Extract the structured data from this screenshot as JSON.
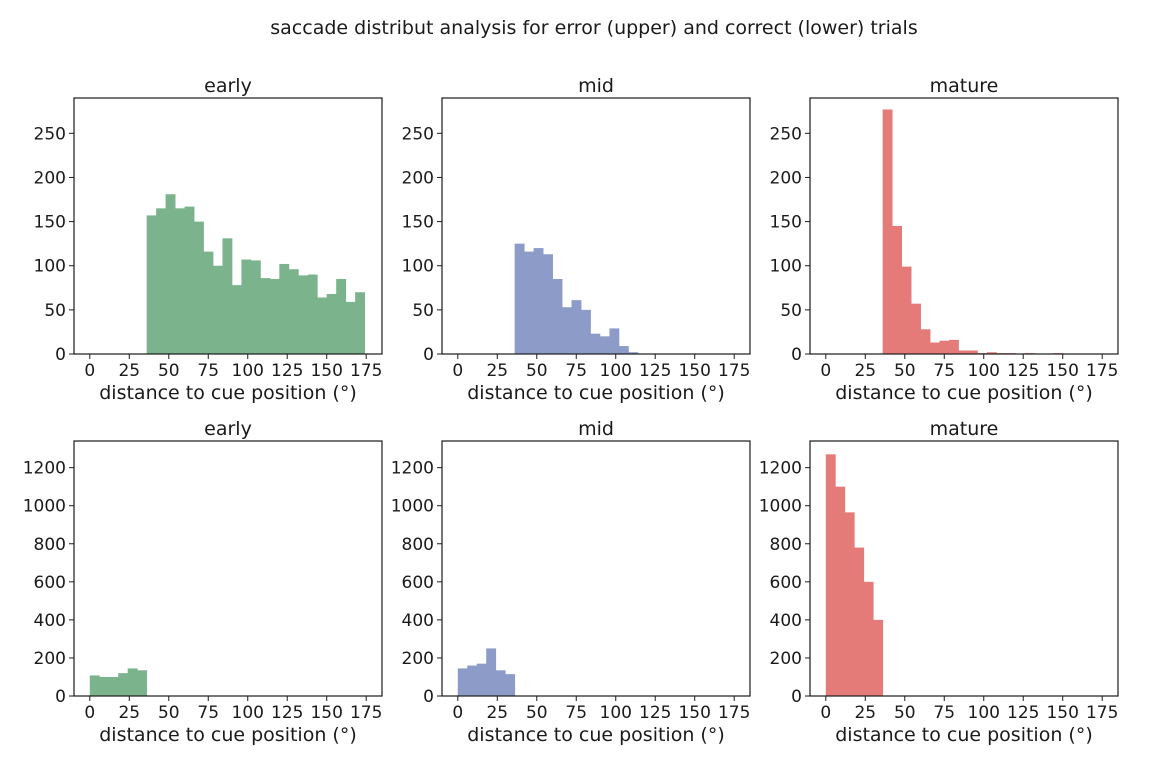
{
  "figure": {
    "title": "saccade distribut analysis for error (upper) and correct (lower) trials"
  },
  "colors": {
    "early": "#7ab38c",
    "mid": "#8c9bc8",
    "mature": "#e57b78"
  },
  "chart_data": [
    {
      "type": "bar",
      "title": "early",
      "xlabel": "distance to cue position (°)",
      "ylabel": "",
      "xlim": [
        -10,
        185
      ],
      "ylim": [
        0,
        290
      ],
      "xticks": [
        0,
        25,
        50,
        75,
        100,
        125,
        150,
        175
      ],
      "yticks": [
        0,
        50,
        100,
        150,
        200,
        250
      ],
      "bin_width": 6,
      "color": "#7ab38c",
      "bins_start": [
        36,
        42,
        48,
        54,
        60,
        66,
        72,
        78,
        84,
        90,
        96,
        102,
        108,
        114,
        120,
        126,
        132,
        138,
        144,
        150,
        156,
        162,
        168,
        174
      ],
      "values": [
        157,
        165,
        181,
        165,
        167,
        150,
        116,
        100,
        131,
        78,
        107,
        106,
        86,
        85,
        102,
        96,
        89,
        90,
        64,
        68,
        85,
        59,
        70,
        0
      ]
    },
    {
      "type": "bar",
      "title": "mid",
      "xlabel": "distance to cue position (°)",
      "ylabel": "",
      "xlim": [
        -10,
        185
      ],
      "ylim": [
        0,
        290
      ],
      "xticks": [
        0,
        25,
        50,
        75,
        100,
        125,
        150,
        175
      ],
      "yticks": [
        0,
        50,
        100,
        150,
        200,
        250
      ],
      "bin_width": 6,
      "color": "#8c9bc8",
      "bins_start": [
        36,
        42,
        48,
        54,
        60,
        66,
        72,
        78,
        84,
        90,
        96,
        102,
        108
      ],
      "values": [
        125,
        116,
        120,
        113,
        85,
        53,
        61,
        50,
        23,
        20,
        29,
        9,
        2
      ]
    },
    {
      "type": "bar",
      "title": "mature",
      "xlabel": "distance to cue position (°)",
      "ylabel": "",
      "xlim": [
        -10,
        185
      ],
      "ylim": [
        0,
        290
      ],
      "xticks": [
        0,
        25,
        50,
        75,
        100,
        125,
        150,
        175
      ],
      "yticks": [
        0,
        50,
        100,
        150,
        200,
        250
      ],
      "bin_width": 6,
      "color": "#e57b78",
      "bins_start": [
        36,
        42,
        48,
        54,
        60,
        66,
        72,
        78,
        84,
        90,
        96,
        102,
        108,
        114,
        120,
        126,
        132,
        138,
        144
      ],
      "values": [
        277,
        145,
        99,
        57,
        28,
        13,
        15,
        16,
        4,
        4,
        1,
        2,
        1,
        1,
        0,
        1,
        0,
        0,
        1
      ]
    },
    {
      "type": "bar",
      "title": "early",
      "xlabel": "distance to cue position (°)",
      "ylabel": "",
      "xlim": [
        -10,
        185
      ],
      "ylim": [
        0,
        1340
      ],
      "xticks": [
        0,
        25,
        50,
        75,
        100,
        125,
        150,
        175
      ],
      "yticks": [
        0,
        200,
        400,
        600,
        800,
        1000,
        1200
      ],
      "bin_width": 6,
      "color": "#7ab38c",
      "bins_start": [
        0,
        6,
        12,
        18,
        24,
        30
      ],
      "values": [
        108,
        100,
        100,
        120,
        145,
        135
      ]
    },
    {
      "type": "bar",
      "title": "mid",
      "xlabel": "distance to cue position (°)",
      "ylabel": "",
      "xlim": [
        -10,
        185
      ],
      "ylim": [
        0,
        1340
      ],
      "xticks": [
        0,
        25,
        50,
        75,
        100,
        125,
        150,
        175
      ],
      "yticks": [
        0,
        200,
        400,
        600,
        800,
        1000,
        1200
      ],
      "bin_width": 6,
      "color": "#8c9bc8",
      "bins_start": [
        0,
        6,
        12,
        18,
        24,
        30
      ],
      "values": [
        145,
        160,
        170,
        250,
        135,
        115
      ]
    },
    {
      "type": "bar",
      "title": "mature",
      "xlabel": "distance to cue position (°)",
      "ylabel": "",
      "xlim": [
        -10,
        185
      ],
      "ylim": [
        0,
        1340
      ],
      "xticks": [
        0,
        25,
        50,
        75,
        100,
        125,
        150,
        175
      ],
      "yticks": [
        0,
        200,
        400,
        600,
        800,
        1000,
        1200
      ],
      "bin_width": 6,
      "color": "#e57b78",
      "bins_start": [
        0,
        6,
        12,
        18,
        24,
        30
      ],
      "values": [
        1270,
        1100,
        965,
        780,
        600,
        400
      ]
    }
  ]
}
